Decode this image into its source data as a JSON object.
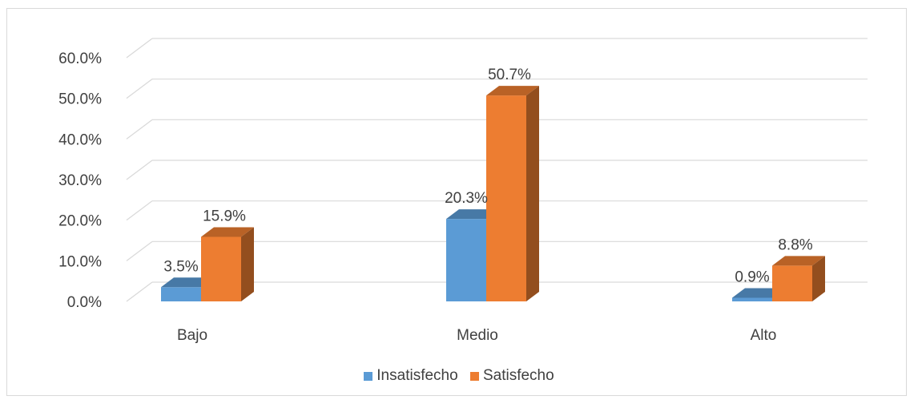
{
  "chart_data": {
    "type": "bar",
    "categories": [
      "Bajo",
      "Medio",
      "Alto"
    ],
    "series": [
      {
        "name": "Insatisfecho",
        "values": [
          3.5,
          20.3,
          0.9
        ],
        "labels": [
          "3.5%",
          "20.3%",
          "0.9%"
        ],
        "color": "#5b9bd5"
      },
      {
        "name": "Satisfecho",
        "values": [
          15.9,
          50.7,
          8.8
        ],
        "labels": [
          "15.9%",
          "50.7%",
          "8.8%"
        ],
        "color": "#ed7d31"
      }
    ],
    "y_ticks": [
      "0.0%",
      "10.0%",
      "20.0%",
      "30.0%",
      "40.0%",
      "50.0%",
      "60.0%"
    ],
    "ylim": [
      0,
      60
    ],
    "style": "3d-clustered-column",
    "grid": true,
    "legend_position": "bottom"
  }
}
